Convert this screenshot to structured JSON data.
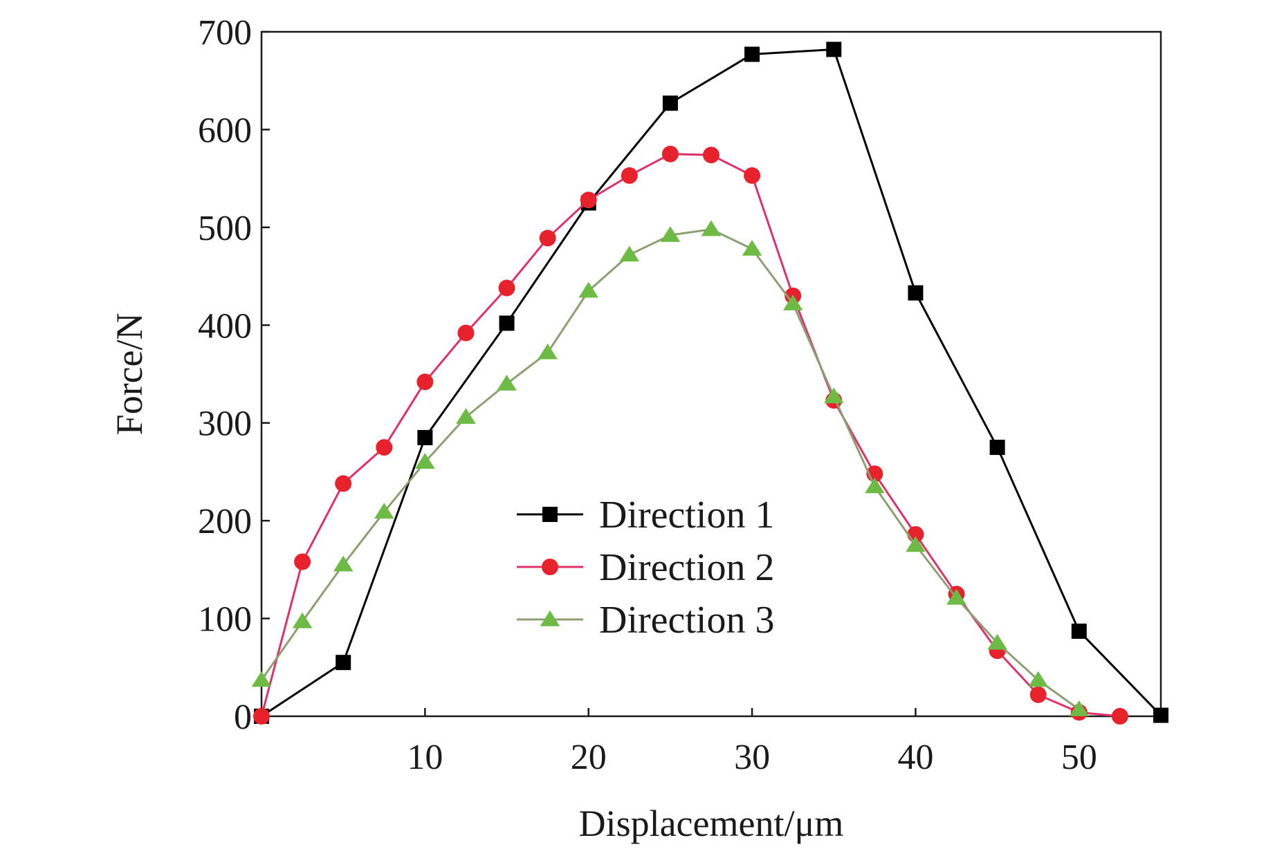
{
  "chart_data": {
    "type": "line",
    "xlabel": "Displacement/μm",
    "ylabel": "Force/N",
    "xlim": [
      0,
      55
    ],
    "ylim": [
      0,
      700
    ],
    "x_ticks": [
      10,
      20,
      30,
      40,
      50
    ],
    "y_ticks": [
      0,
      100,
      200,
      300,
      400,
      500,
      600,
      700
    ],
    "grid": false,
    "legend_position": "center",
    "series": [
      {
        "name": "Direction 1",
        "marker": "square",
        "color": "#000000",
        "points": [
          [
            0,
            0
          ],
          [
            5,
            55
          ],
          [
            10,
            285
          ],
          [
            15,
            402
          ],
          [
            20,
            525
          ],
          [
            25,
            627
          ],
          [
            30,
            677
          ],
          [
            35,
            682
          ],
          [
            40,
            433
          ],
          [
            45,
            275
          ],
          [
            50,
            87
          ],
          [
            55,
            1
          ]
        ]
      },
      {
        "name": "Direction 2",
        "marker": "circle",
        "color": "#e8222d",
        "line_color": "#e0306a",
        "points": [
          [
            0,
            0
          ],
          [
            2.5,
            158
          ],
          [
            5,
            238
          ],
          [
            7.5,
            275
          ],
          [
            10,
            342
          ],
          [
            12.5,
            392
          ],
          [
            15,
            438
          ],
          [
            17.5,
            489
          ],
          [
            20,
            528
          ],
          [
            22.5,
            553
          ],
          [
            25,
            575
          ],
          [
            27.5,
            574
          ],
          [
            30,
            553
          ],
          [
            32.5,
            430
          ],
          [
            35,
            323
          ],
          [
            37.5,
            248
          ],
          [
            40,
            186
          ],
          [
            42.5,
            125
          ],
          [
            45,
            67
          ],
          [
            47.5,
            22
          ],
          [
            50,
            4
          ],
          [
            52.5,
            0
          ]
        ]
      },
      {
        "name": "Direction 3",
        "marker": "triangle",
        "color": "#6dbb45",
        "line_color": "#8c9f72",
        "points": [
          [
            0,
            37
          ],
          [
            2.5,
            97
          ],
          [
            5,
            155
          ],
          [
            7.5,
            209
          ],
          [
            10,
            260
          ],
          [
            12.5,
            306
          ],
          [
            15,
            340
          ],
          [
            17.5,
            372
          ],
          [
            20,
            435
          ],
          [
            22.5,
            472
          ],
          [
            25,
            492
          ],
          [
            27.5,
            498
          ],
          [
            30,
            478
          ],
          [
            32.5,
            422
          ],
          [
            35,
            327
          ],
          [
            37.5,
            235
          ],
          [
            40,
            175
          ],
          [
            42.5,
            121
          ],
          [
            45,
            75
          ],
          [
            47.5,
            37
          ],
          [
            50,
            7
          ]
        ]
      }
    ]
  }
}
